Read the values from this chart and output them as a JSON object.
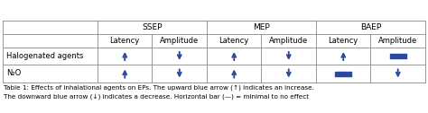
{
  "col_groups": [
    "SSEP",
    "MEP",
    "BAEP"
  ],
  "col_headers": [
    "Latency",
    "Amplitude",
    "Latency",
    "Amplitude",
    "Latency",
    "Amplitude"
  ],
  "row_headers": [
    "Halogenated agents",
    "N₂O"
  ],
  "arrow_color": "#2B4A9E",
  "bar_color": "#2B4A9E",
  "bg_color": "#FFFFFF",
  "border_color": "#888888",
  "cell_data": [
    [
      "up",
      "down",
      "up",
      "down",
      "up",
      "bar"
    ],
    [
      "up",
      "down",
      "up",
      "down",
      "bar",
      "down"
    ]
  ],
  "font_size_group": 6.5,
  "font_size_col": 6.0,
  "font_size_row": 6.0,
  "font_size_caption": 5.2,
  "caption_line1": "Table 1: Effects of inhalational agents on EPs. The upward blue arrow (↑) indicates an increase.",
  "caption_line2": "The downward blue arrow (↓) indicates a decrease. Horizontal bar (—) = minimal to no effect"
}
